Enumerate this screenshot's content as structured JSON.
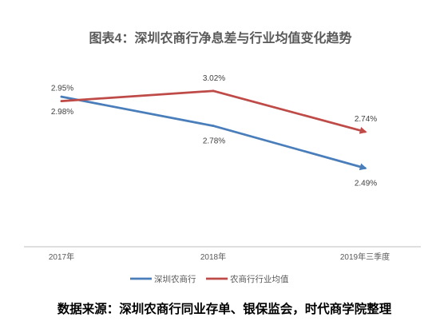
{
  "chart_data": {
    "type": "line",
    "title": "图表4：深圳农商行净息差与行业均值变化趋势",
    "categories": [
      "2017年",
      "2018年",
      "2019年三季度"
    ],
    "series": [
      {
        "name": "深圳农商行",
        "color": "#4A7EBB",
        "values": [
          2.98,
          2.78,
          2.49
        ],
        "labels": [
          "2.98%",
          "2.78%",
          "2.49%"
        ],
        "label_position": "below"
      },
      {
        "name": "农商行行业均值",
        "color": "#BE4B48",
        "values": [
          2.95,
          3.02,
          2.74
        ],
        "labels": [
          "2.95%",
          "3.02%",
          "2.74%"
        ],
        "label_position": "above"
      }
    ],
    "ylim": [
      1.95,
      3.2
    ],
    "grid": false,
    "legend": "bottom"
  },
  "source": "数据来源：深圳农商行同业存单、银保监会，时代商学院整理"
}
